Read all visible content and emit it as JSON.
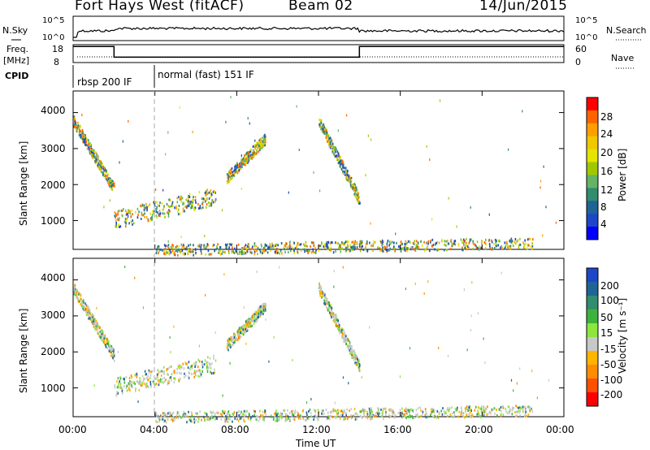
{
  "header": {
    "station": "Fort Hays West (fitACF)",
    "beam": "Beam 02",
    "date": "14/Jun/2015"
  },
  "noise_panel": {
    "left_label": "N.Sky",
    "right_label": "N.Search",
    "left_ticks": [
      "10^5",
      "10^0"
    ],
    "right_ticks": [
      "10^5",
      "10^0"
    ]
  },
  "freq_panel": {
    "left_label": "Freq.",
    "left_unit": "[MHz]",
    "right_label": "Nave",
    "left_ticks": [
      "18",
      "8"
    ],
    "right_ticks": [
      "60",
      "0"
    ],
    "freq_steps": [
      {
        "t": 0,
        "v": 17
      },
      {
        "t": 2,
        "v": 11
      },
      {
        "t": 14,
        "v": 17
      },
      {
        "t": 24,
        "v": 17
      }
    ]
  },
  "cpid": {
    "label": "CPID",
    "modes": [
      {
        "start": 0,
        "name": "rbsp 200 IF"
      },
      {
        "start": 4,
        "name": "normal (fast) 151 IF"
      }
    ]
  },
  "panels": {
    "ylabel": "Slant Range [km]",
    "yticks": [
      "4000",
      "3000",
      "2000",
      "1000"
    ],
    "xlabel": "Time UT",
    "xticks": [
      "00:00",
      "04:00",
      "08:00",
      "12:00",
      "16:00",
      "20:00",
      "00:00"
    ]
  },
  "power_scale": {
    "label": "Power [dB]",
    "ticks": [
      "28",
      "24",
      "20",
      "16",
      "12",
      "8",
      "4"
    ],
    "colors": [
      "#ff0000",
      "#ff6400",
      "#ff9f00",
      "#f0c800",
      "#e4e400",
      "#a0c800",
      "#64b464",
      "#328c6e",
      "#1e6496",
      "#1e46c8",
      "#0000ff"
    ]
  },
  "velocity_scale": {
    "label": "Velocity [m s⁻¹]",
    "ticks": [
      "200",
      "100",
      "50",
      "15",
      "-15",
      "-50",
      "-100",
      "-200"
    ],
    "colors": [
      "#1e46c8",
      "#1e6496",
      "#328c6e",
      "#3cb43c",
      "#8ce63c",
      "#c8c8c8",
      "#ffb400",
      "#ff8c00",
      "#ff5000",
      "#ff0000"
    ]
  },
  "chart_data": {
    "type": "heatmap",
    "x_unit": "hours UT",
    "xlim": [
      0,
      24
    ],
    "ylim": [
      200,
      4600
    ],
    "features": [
      {
        "name_hint": "early-range-falling",
        "t0": 0.0,
        "t1": 2.0,
        "r0": 3800,
        "r1": 1900
      },
      {
        "name_hint": "mid-rising-band",
        "t0": 2.0,
        "t1": 7.0,
        "r0": 1050,
        "r1": 1700
      },
      {
        "name_hint": "rising-sparse",
        "t0": 7.5,
        "t1": 9.4,
        "r0": 2200,
        "r1": 3300
      },
      {
        "name_hint": "noon-falling",
        "t0": 12.0,
        "t1": 14.0,
        "r0": 3800,
        "r1": 1600
      },
      {
        "name_hint": "near-range",
        "t0": 4.0,
        "t1": 22.5,
        "r0": 200,
        "r1": 400
      }
    ]
  }
}
